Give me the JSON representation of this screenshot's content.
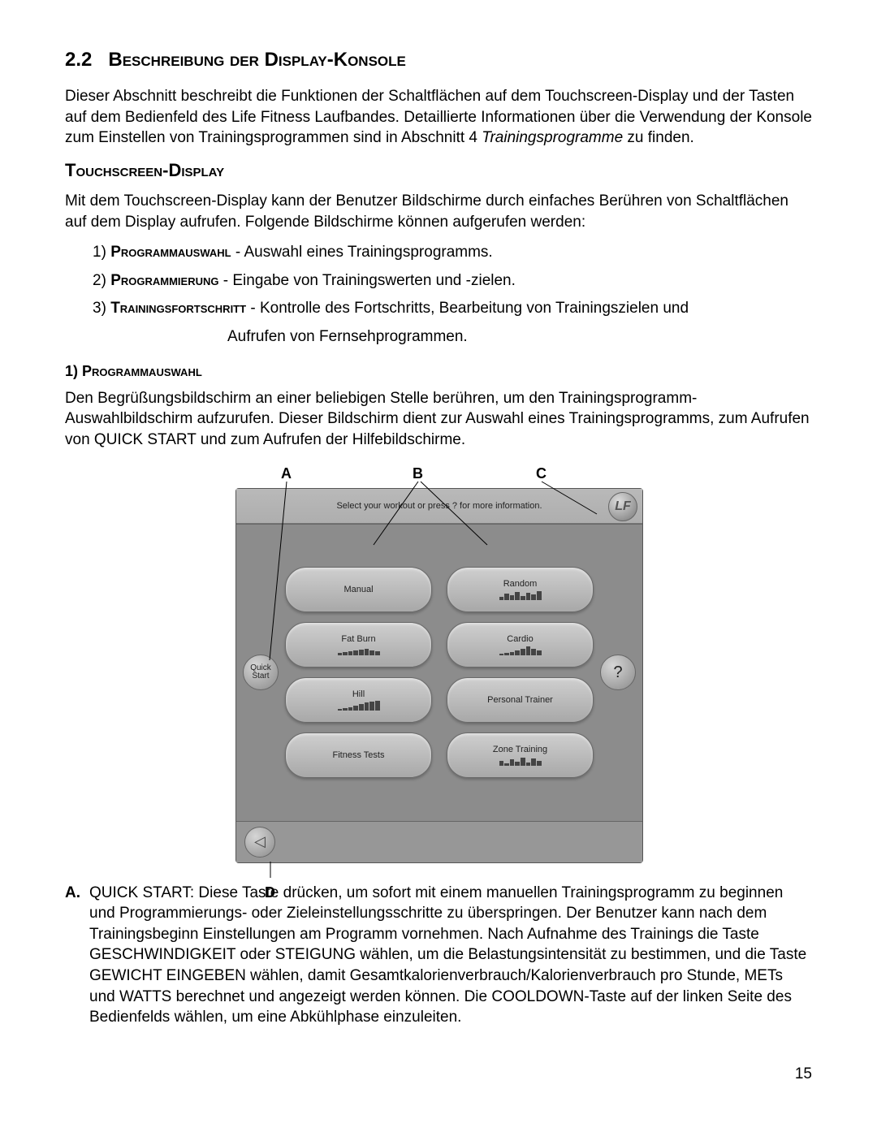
{
  "section": {
    "number": "2.2",
    "title": "Beschreibung der Display-Konsole"
  },
  "intro": {
    "text_before_italic": "Dieser Abschnitt beschreibt die Funktionen der Schaltflächen auf dem Touchscreen-Display und der Tasten auf dem Bedienfeld des Life Fitness Laufbandes. Detaillierte Informationen über die Verwendung der Konsole zum Einstellen von Trainingsprogrammen sind in Abschnitt 4 ",
    "italic": "Trainingsprogramme",
    "text_after_italic": " zu finden."
  },
  "touchscreen": {
    "heading": "Touchscreen-Display",
    "intro": "Mit dem Touchscreen-Display kann der Benutzer Bildschirme durch einfaches Berühren von Schaltflächen auf dem Display aufrufen. Folgende Bildschirme können aufgerufen werden:",
    "items": [
      {
        "num": "1)",
        "caps": "Programmauswahl",
        "rest": " - Auswahl eines Trainingsprogramms."
      },
      {
        "num": "2)",
        "caps": "Programmierung",
        "rest": " - Eingabe von Trainingswerten und -zielen."
      },
      {
        "num": "3)",
        "caps": "Trainingsfortschritt",
        "rest": " - Kontrolle des Fortschritts, Bearbeitung von Trainingszielen und"
      }
    ],
    "item3_cont": "Aufrufen von Fernsehprogrammen."
  },
  "prog": {
    "heading": "1)  Programmauswahl",
    "intro": "Den Begrüßungsbildschirm an einer beliebigen Stelle berühren, um den Trainingsprogramm-Auswahlbildschirm aufzurufen. Dieser Bildschirm dient zur Auswahl eines Trainingsprogramms, zum Aufrufen von QUICK START und zum Aufrufen der Hilfebildschirme."
  },
  "figure": {
    "callouts": {
      "A": "A",
      "B": "B",
      "C": "C",
      "D": "D"
    },
    "header_text": "Select your workout or press ? for more information.",
    "quick_start": "Quick Start",
    "help": "?",
    "buttons": [
      "Manual",
      "Random",
      "Fat Burn",
      "Cardio",
      "Hill",
      "Personal Trainer",
      "Fitness Tests",
      "Zone Training"
    ],
    "bar_heights": {
      "Random": [
        4,
        8,
        6,
        10,
        5,
        9,
        7,
        11
      ],
      "Fat Burn": [
        3,
        4,
        5,
        6,
        7,
        8,
        6,
        5
      ],
      "Cardio": [
        2,
        3,
        4,
        6,
        8,
        11,
        8,
        6
      ],
      "Hill": [
        2,
        3,
        4,
        6,
        8,
        10,
        11,
        12
      ],
      "Zone Training": [
        6,
        3,
        8,
        5,
        10,
        4,
        9,
        6
      ]
    }
  },
  "desc": {
    "A": {
      "letter": "A.",
      "text": "QUICK START: Diese Taste drücken, um sofort mit einem manuellen Trainingsprogramm zu beginnen und Programmierungs- oder Zieleinstellungsschritte zu überspringen. Der Benutzer kann nach dem Trainingsbeginn Einstellungen am Programm vornehmen. Nach Aufnahme des Trainings die Taste GESCHWINDIGKEIT oder STEIGUNG wählen, um die Belastungsintensität zu bestimmen, und die Taste GEWICHT EINGEBEN wählen, damit Gesamtkalorienverbrauch/Kalorienverbrauch pro Stunde, METs und WATTS berechnet und angezeigt werden können. Die COOLDOWN-Taste auf der linken Seite des Bedienfelds wählen, um eine Abkühlphase einzuleiten."
    }
  },
  "page_number": "15"
}
